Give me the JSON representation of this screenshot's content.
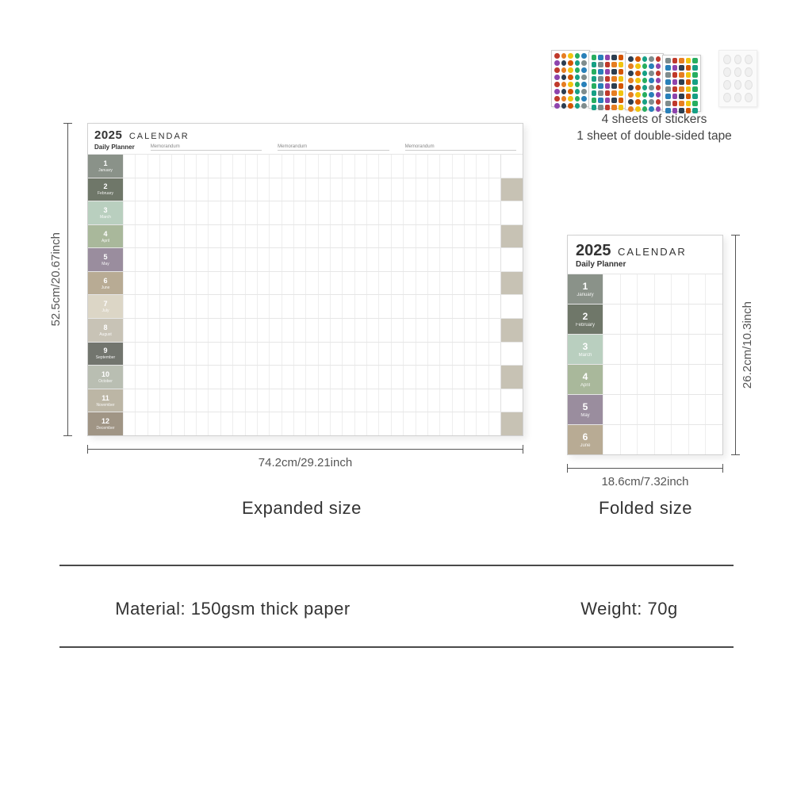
{
  "calendar": {
    "year": "2025",
    "word": "CALENDAR",
    "subtitle": "Daily Planner",
    "memorandum": "Memorandum"
  },
  "months": [
    {
      "num": "1",
      "name": "January",
      "color": "#8a9289"
    },
    {
      "num": "2",
      "name": "February",
      "color": "#6f7769"
    },
    {
      "num": "3",
      "name": "March",
      "color": "#b9cfbf"
    },
    {
      "num": "4",
      "name": "April",
      "color": "#a9b89b"
    },
    {
      "num": "5",
      "name": "May",
      "color": "#9a8d9e"
    },
    {
      "num": "6",
      "name": "June",
      "color": "#b8ab94"
    },
    {
      "num": "7",
      "name": "July",
      "color": "#dcd6c6"
    },
    {
      "num": "8",
      "name": "August",
      "color": "#c8c3b6"
    },
    {
      "num": "9",
      "name": "September",
      "color": "#72756e"
    },
    {
      "num": "10",
      "name": "October",
      "color": "#b9beb2"
    },
    {
      "num": "11",
      "name": "November",
      "color": "#bcb6a5"
    },
    {
      "num": "12",
      "name": "December",
      "color": "#a09585"
    }
  ],
  "end_fill_rows": [
    1,
    3,
    5,
    7,
    9,
    11
  ],
  "end_fill_color": "#c7c2b4",
  "dimensions": {
    "exp_h": "52.5cm/20.67inch",
    "exp_w": "74.2cm/29.21inch",
    "fold_h": "26.2cm/10.3inch",
    "fold_w": "18.6cm/7.32inch"
  },
  "size_labels": {
    "expanded": "Expanded size",
    "folded": "Folded size"
  },
  "stickers": {
    "line1": "4 sheets of stickers",
    "line2": "1 sheet of double-sided tape",
    "palette": [
      "#c0392b",
      "#e67e22",
      "#f1c40f",
      "#27ae60",
      "#2980b9",
      "#8e44ad",
      "#2c3e50",
      "#d35400",
      "#16a085",
      "#7f8c8d"
    ]
  },
  "specs": {
    "material": "Material: 150gsm thick paper",
    "weight": "Weight: 70g"
  }
}
